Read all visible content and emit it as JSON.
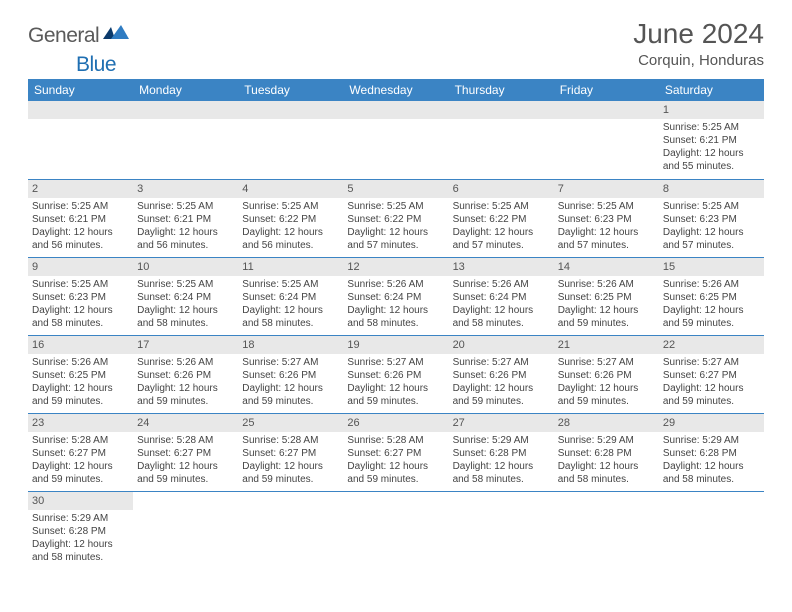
{
  "logo": {
    "text1": "General",
    "text2": "Blue"
  },
  "title": "June 2024",
  "location": "Corquin, Honduras",
  "colors": {
    "header_bg": "#3b84c4",
    "header_text": "#ffffff",
    "daynum_bg": "#e8e8e8",
    "border": "#3b84c4",
    "body_text": "#444444",
    "title_text": "#555555",
    "logo_gray": "#5a5a5a",
    "logo_blue": "#1f6fb2"
  },
  "weekdays": [
    "Sunday",
    "Monday",
    "Tuesday",
    "Wednesday",
    "Thursday",
    "Friday",
    "Saturday"
  ],
  "weeks": [
    [
      null,
      null,
      null,
      null,
      null,
      null,
      {
        "day": "1",
        "sunrise": "Sunrise: 5:25 AM",
        "sunset": "Sunset: 6:21 PM",
        "daylight": "Daylight: 12 hours and 55 minutes."
      }
    ],
    [
      {
        "day": "2",
        "sunrise": "Sunrise: 5:25 AM",
        "sunset": "Sunset: 6:21 PM",
        "daylight": "Daylight: 12 hours and 56 minutes."
      },
      {
        "day": "3",
        "sunrise": "Sunrise: 5:25 AM",
        "sunset": "Sunset: 6:21 PM",
        "daylight": "Daylight: 12 hours and 56 minutes."
      },
      {
        "day": "4",
        "sunrise": "Sunrise: 5:25 AM",
        "sunset": "Sunset: 6:22 PM",
        "daylight": "Daylight: 12 hours and 56 minutes."
      },
      {
        "day": "5",
        "sunrise": "Sunrise: 5:25 AM",
        "sunset": "Sunset: 6:22 PM",
        "daylight": "Daylight: 12 hours and 57 minutes."
      },
      {
        "day": "6",
        "sunrise": "Sunrise: 5:25 AM",
        "sunset": "Sunset: 6:22 PM",
        "daylight": "Daylight: 12 hours and 57 minutes."
      },
      {
        "day": "7",
        "sunrise": "Sunrise: 5:25 AM",
        "sunset": "Sunset: 6:23 PM",
        "daylight": "Daylight: 12 hours and 57 minutes."
      },
      {
        "day": "8",
        "sunrise": "Sunrise: 5:25 AM",
        "sunset": "Sunset: 6:23 PM",
        "daylight": "Daylight: 12 hours and 57 minutes."
      }
    ],
    [
      {
        "day": "9",
        "sunrise": "Sunrise: 5:25 AM",
        "sunset": "Sunset: 6:23 PM",
        "daylight": "Daylight: 12 hours and 58 minutes."
      },
      {
        "day": "10",
        "sunrise": "Sunrise: 5:25 AM",
        "sunset": "Sunset: 6:24 PM",
        "daylight": "Daylight: 12 hours and 58 minutes."
      },
      {
        "day": "11",
        "sunrise": "Sunrise: 5:25 AM",
        "sunset": "Sunset: 6:24 PM",
        "daylight": "Daylight: 12 hours and 58 minutes."
      },
      {
        "day": "12",
        "sunrise": "Sunrise: 5:26 AM",
        "sunset": "Sunset: 6:24 PM",
        "daylight": "Daylight: 12 hours and 58 minutes."
      },
      {
        "day": "13",
        "sunrise": "Sunrise: 5:26 AM",
        "sunset": "Sunset: 6:24 PM",
        "daylight": "Daylight: 12 hours and 58 minutes."
      },
      {
        "day": "14",
        "sunrise": "Sunrise: 5:26 AM",
        "sunset": "Sunset: 6:25 PM",
        "daylight": "Daylight: 12 hours and 59 minutes."
      },
      {
        "day": "15",
        "sunrise": "Sunrise: 5:26 AM",
        "sunset": "Sunset: 6:25 PM",
        "daylight": "Daylight: 12 hours and 59 minutes."
      }
    ],
    [
      {
        "day": "16",
        "sunrise": "Sunrise: 5:26 AM",
        "sunset": "Sunset: 6:25 PM",
        "daylight": "Daylight: 12 hours and 59 minutes."
      },
      {
        "day": "17",
        "sunrise": "Sunrise: 5:26 AM",
        "sunset": "Sunset: 6:26 PM",
        "daylight": "Daylight: 12 hours and 59 minutes."
      },
      {
        "day": "18",
        "sunrise": "Sunrise: 5:27 AM",
        "sunset": "Sunset: 6:26 PM",
        "daylight": "Daylight: 12 hours and 59 minutes."
      },
      {
        "day": "19",
        "sunrise": "Sunrise: 5:27 AM",
        "sunset": "Sunset: 6:26 PM",
        "daylight": "Daylight: 12 hours and 59 minutes."
      },
      {
        "day": "20",
        "sunrise": "Sunrise: 5:27 AM",
        "sunset": "Sunset: 6:26 PM",
        "daylight": "Daylight: 12 hours and 59 minutes."
      },
      {
        "day": "21",
        "sunrise": "Sunrise: 5:27 AM",
        "sunset": "Sunset: 6:26 PM",
        "daylight": "Daylight: 12 hours and 59 minutes."
      },
      {
        "day": "22",
        "sunrise": "Sunrise: 5:27 AM",
        "sunset": "Sunset: 6:27 PM",
        "daylight": "Daylight: 12 hours and 59 minutes."
      }
    ],
    [
      {
        "day": "23",
        "sunrise": "Sunrise: 5:28 AM",
        "sunset": "Sunset: 6:27 PM",
        "daylight": "Daylight: 12 hours and 59 minutes."
      },
      {
        "day": "24",
        "sunrise": "Sunrise: 5:28 AM",
        "sunset": "Sunset: 6:27 PM",
        "daylight": "Daylight: 12 hours and 59 minutes."
      },
      {
        "day": "25",
        "sunrise": "Sunrise: 5:28 AM",
        "sunset": "Sunset: 6:27 PM",
        "daylight": "Daylight: 12 hours and 59 minutes."
      },
      {
        "day": "26",
        "sunrise": "Sunrise: 5:28 AM",
        "sunset": "Sunset: 6:27 PM",
        "daylight": "Daylight: 12 hours and 59 minutes."
      },
      {
        "day": "27",
        "sunrise": "Sunrise: 5:29 AM",
        "sunset": "Sunset: 6:28 PM",
        "daylight": "Daylight: 12 hours and 58 minutes."
      },
      {
        "day": "28",
        "sunrise": "Sunrise: 5:29 AM",
        "sunset": "Sunset: 6:28 PM",
        "daylight": "Daylight: 12 hours and 58 minutes."
      },
      {
        "day": "29",
        "sunrise": "Sunrise: 5:29 AM",
        "sunset": "Sunset: 6:28 PM",
        "daylight": "Daylight: 12 hours and 58 minutes."
      }
    ],
    [
      {
        "day": "30",
        "sunrise": "Sunrise: 5:29 AM",
        "sunset": "Sunset: 6:28 PM",
        "daylight": "Daylight: 12 hours and 58 minutes."
      },
      null,
      null,
      null,
      null,
      null,
      null
    ]
  ]
}
